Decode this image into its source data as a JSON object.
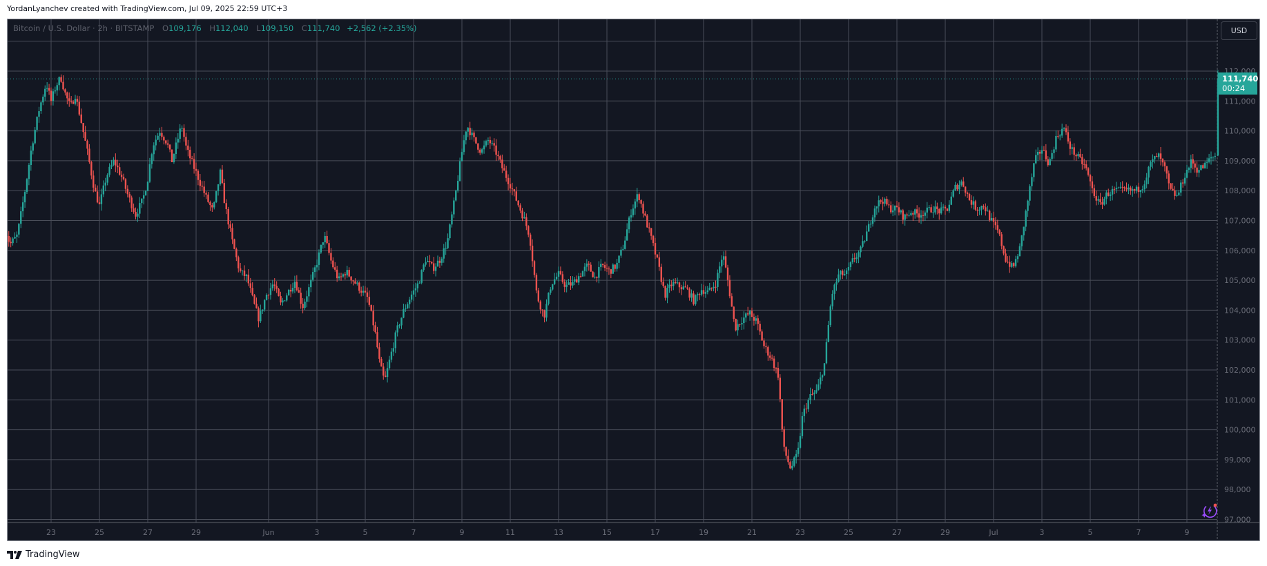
{
  "credit": "YordanLyanchev created with TradingView.com, Jul 09, 2025 22:59 UTC+3",
  "legend": {
    "symbol": "Bitcoin / U.S. Dollar · 2h · BITSTAMP",
    "open_label": "O",
    "open": "109,176",
    "high_label": "H",
    "high": "112,040",
    "low_label": "L",
    "low": "109,150",
    "close_label": "C",
    "close": "111,740",
    "change": "+2,562 (+2.35%)"
  },
  "currency_button": "USD",
  "last_price": {
    "price": "111,740",
    "countdown": "00:24"
  },
  "footer_logo": "TradingView",
  "colors": {
    "background": "#131722",
    "up": "#26a69a",
    "down": "#ef5350",
    "grid": "#4a4e59",
    "axis_text": "#6a6d78",
    "accent": "#26a69a",
    "bolt": "#9c4dff"
  },
  "chart_data": {
    "type": "candlestick",
    "title": "Bitcoin / U.S. Dollar · 2h · BITSTAMP",
    "interval": "2h",
    "xlabel": "",
    "ylabel": "USD",
    "ylim": [
      97000,
      112400
    ],
    "y_ticks": [
      97000,
      98000,
      99000,
      100000,
      101000,
      102000,
      103000,
      104000,
      105000,
      106000,
      107000,
      108000,
      109000,
      110000,
      111000,
      112000
    ],
    "y_tick_labels": [
      "97,000",
      "98,000",
      "99,000",
      "100,000",
      "101,000",
      "102,000",
      "103,000",
      "104,000",
      "105,000",
      "106,000",
      "107,000",
      "108,000",
      "109,000",
      "110,000",
      "111,000",
      "112,000"
    ],
    "x_tick_labels": [
      "23",
      "25",
      "27",
      "29",
      "Jun",
      "3",
      "5",
      "7",
      "9",
      "11",
      "13",
      "15",
      "17",
      "19",
      "21",
      "23",
      "25",
      "27",
      "29",
      "Jul",
      "3",
      "5",
      "7",
      "9"
    ],
    "x_tick_days": [
      2,
      4,
      6,
      8,
      11,
      13,
      15,
      17,
      19,
      21,
      23,
      25,
      27,
      29,
      31,
      33,
      35,
      37,
      39,
      41,
      43,
      45,
      47,
      49
    ],
    "x_day_origin": "May 21, 2025",
    "grid": true,
    "last_price_line": 111740,
    "price_path_note": "approximate close path sampled every half day (day index from May 21)",
    "price_path": [
      [
        0.0,
        107000
      ],
      [
        0.3,
        106200
      ],
      [
        0.6,
        106500
      ],
      [
        0.9,
        107900
      ],
      [
        1.2,
        109500
      ],
      [
        1.5,
        110700
      ],
      [
        1.8,
        111600
      ],
      [
        2.0,
        111000
      ],
      [
        2.2,
        111500
      ],
      [
        2.4,
        111800
      ],
      [
        2.6,
        111200
      ],
      [
        2.8,
        110800
      ],
      [
        3.0,
        111200
      ],
      [
        3.2,
        110500
      ],
      [
        3.5,
        109300
      ],
      [
        3.8,
        108000
      ],
      [
        4.0,
        107500
      ],
      [
        4.3,
        108500
      ],
      [
        4.6,
        109000
      ],
      [
        4.9,
        108500
      ],
      [
        5.2,
        107800
      ],
      [
        5.5,
        107200
      ],
      [
        5.8,
        107700
      ],
      [
        6.0,
        108400
      ],
      [
        6.2,
        109500
      ],
      [
        6.5,
        110000
      ],
      [
        6.8,
        109600
      ],
      [
        7.0,
        109000
      ],
      [
        7.2,
        109600
      ],
      [
        7.4,
        110200
      ],
      [
        7.6,
        109400
      ],
      [
        7.9,
        108800
      ],
      [
        8.1,
        108400
      ],
      [
        8.4,
        107800
      ],
      [
        8.7,
        107300
      ],
      [
        9.0,
        108600
      ],
      [
        9.2,
        107500
      ],
      [
        9.5,
        106300
      ],
      [
        9.8,
        105300
      ],
      [
        10.1,
        105100
      ],
      [
        10.4,
        104200
      ],
      [
        10.6,
        103700
      ],
      [
        10.9,
        104500
      ],
      [
        11.2,
        104900
      ],
      [
        11.5,
        104200
      ],
      [
        11.8,
        104600
      ],
      [
        12.1,
        105000
      ],
      [
        12.4,
        104100
      ],
      [
        12.7,
        104800
      ],
      [
        13.0,
        105600
      ],
      [
        13.3,
        106500
      ],
      [
        13.6,
        105600
      ],
      [
        13.9,
        105000
      ],
      [
        14.2,
        105300
      ],
      [
        14.5,
        105000
      ],
      [
        14.8,
        104700
      ],
      [
        15.1,
        104400
      ],
      [
        15.4,
        103300
      ],
      [
        15.6,
        102200
      ],
      [
        15.8,
        101600
      ],
      [
        16.0,
        102300
      ],
      [
        16.3,
        103300
      ],
      [
        16.6,
        104000
      ],
      [
        16.9,
        104500
      ],
      [
        17.2,
        104900
      ],
      [
        17.5,
        105700
      ],
      [
        17.8,
        105400
      ],
      [
        18.1,
        105700
      ],
      [
        18.4,
        106300
      ],
      [
        18.7,
        107700
      ],
      [
        19.0,
        109300
      ],
      [
        19.2,
        110200
      ],
      [
        19.5,
        109700
      ],
      [
        19.8,
        109300
      ],
      [
        20.1,
        109700
      ],
      [
        20.4,
        109300
      ],
      [
        20.7,
        108700
      ],
      [
        21.0,
        108200
      ],
      [
        21.3,
        107600
      ],
      [
        21.6,
        107000
      ],
      [
        21.8,
        106500
      ],
      [
        22.1,
        104500
      ],
      [
        22.4,
        103800
      ],
      [
        22.7,
        104900
      ],
      [
        23.0,
        105200
      ],
      [
        23.3,
        104800
      ],
      [
        23.6,
        104900
      ],
      [
        23.9,
        105200
      ],
      [
        24.2,
        105500
      ],
      [
        24.5,
        105100
      ],
      [
        24.8,
        105500
      ],
      [
        25.1,
        105300
      ],
      [
        25.4,
        105500
      ],
      [
        25.7,
        106200
      ],
      [
        26.0,
        107300
      ],
      [
        26.3,
        107900
      ],
      [
        26.5,
        107300
      ],
      [
        26.8,
        106500
      ],
      [
        27.1,
        105600
      ],
      [
        27.4,
        104500
      ],
      [
        27.7,
        104900
      ],
      [
        28.0,
        104800
      ],
      [
        28.3,
        104700
      ],
      [
        28.6,
        104300
      ],
      [
        28.9,
        104700
      ],
      [
        29.2,
        104600
      ],
      [
        29.5,
        104900
      ],
      [
        29.8,
        105900
      ],
      [
        30.0,
        105000
      ],
      [
        30.3,
        103400
      ],
      [
        30.6,
        103700
      ],
      [
        30.9,
        103900
      ],
      [
        31.2,
        103600
      ],
      [
        31.5,
        102800
      ],
      [
        31.8,
        102400
      ],
      [
        32.1,
        101800
      ],
      [
        32.3,
        99400
      ],
      [
        32.6,
        98700
      ],
      [
        32.9,
        99200
      ],
      [
        33.1,
        100500
      ],
      [
        33.4,
        101100
      ],
      [
        33.7,
        101300
      ],
      [
        34.0,
        102200
      ],
      [
        34.3,
        104500
      ],
      [
        34.6,
        105200
      ],
      [
        34.9,
        105200
      ],
      [
        35.2,
        105700
      ],
      [
        35.5,
        106000
      ],
      [
        35.8,
        106700
      ],
      [
        36.1,
        107500
      ],
      [
        36.4,
        107700
      ],
      [
        36.7,
        107400
      ],
      [
        37.0,
        107400
      ],
      [
        37.3,
        107100
      ],
      [
        37.6,
        107300
      ],
      [
        37.9,
        107200
      ],
      [
        38.2,
        107300
      ],
      [
        38.5,
        107400
      ],
      [
        38.8,
        107300
      ],
      [
        39.1,
        107400
      ],
      [
        39.4,
        108100
      ],
      [
        39.7,
        108300
      ],
      [
        40.0,
        107700
      ],
      [
        40.3,
        107400
      ],
      [
        40.6,
        107500
      ],
      [
        40.9,
        107000
      ],
      [
        41.2,
        106600
      ],
      [
        41.5,
        105700
      ],
      [
        41.8,
        105400
      ],
      [
        42.1,
        106100
      ],
      [
        42.4,
        107600
      ],
      [
        42.7,
        109000
      ],
      [
        43.0,
        109400
      ],
      [
        43.3,
        108900
      ],
      [
        43.6,
        109800
      ],
      [
        43.9,
        110100
      ],
      [
        44.2,
        109400
      ],
      [
        44.5,
        109100
      ],
      [
        44.8,
        108800
      ],
      [
        45.1,
        108000
      ],
      [
        45.4,
        107500
      ],
      [
        45.7,
        107900
      ],
      [
        46.0,
        108000
      ],
      [
        46.3,
        108000
      ],
      [
        46.6,
        108000
      ],
      [
        46.9,
        108000
      ],
      [
        47.2,
        108200
      ],
      [
        47.5,
        108900
      ],
      [
        47.8,
        109200
      ],
      [
        48.1,
        108700
      ],
      [
        48.3,
        108000
      ],
      [
        48.6,
        107800
      ],
      [
        48.9,
        108500
      ],
      [
        49.2,
        109000
      ],
      [
        49.4,
        108700
      ],
      [
        49.7,
        108800
      ],
      [
        50.0,
        109100
      ],
      [
        50.2,
        109200
      ],
      [
        50.35,
        111740
      ]
    ],
    "last_candle": {
      "open": 109176,
      "high": 112040,
      "low": 109150,
      "close": 111740
    }
  }
}
